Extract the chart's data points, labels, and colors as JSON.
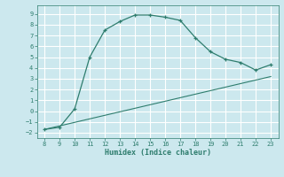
{
  "curve_x": [
    8,
    9,
    10,
    11,
    12,
    13,
    14,
    15,
    16,
    17,
    18,
    19,
    20,
    21,
    22,
    23
  ],
  "curve_y": [
    -1.7,
    -1.5,
    0.2,
    5.0,
    7.5,
    8.3,
    8.9,
    8.9,
    8.7,
    8.4,
    6.8,
    5.5,
    4.8,
    4.5,
    3.8,
    4.3
  ],
  "line_x": [
    8,
    23
  ],
  "line_y": [
    -1.7,
    3.2
  ],
  "color": "#2e7d6e",
  "bg_color": "#cce8ee",
  "grid_color": "#ffffff",
  "xlabel": "Humidex (Indice chaleur)",
  "xlim": [
    7.5,
    23.5
  ],
  "ylim": [
    -2.5,
    9.8
  ],
  "xticks": [
    8,
    9,
    10,
    11,
    12,
    13,
    14,
    15,
    16,
    17,
    18,
    19,
    20,
    21,
    22,
    23
  ],
  "yticks": [
    -2,
    -1,
    0,
    1,
    2,
    3,
    4,
    5,
    6,
    7,
    8,
    9
  ]
}
